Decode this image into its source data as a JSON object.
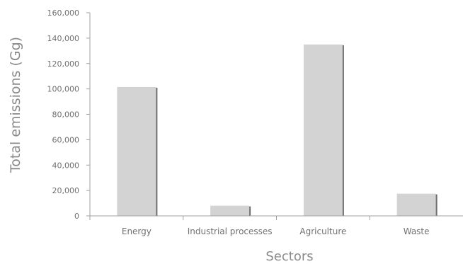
{
  "chart_data": {
    "type": "bar",
    "title": "",
    "xlabel": "Sectors",
    "ylabel": "Total emissions (Gg)",
    "categories": [
      "Energy",
      "Industrial processes",
      "Agriculture",
      "Waste"
    ],
    "values": [
      101500,
      8000,
      135000,
      17500
    ],
    "ylim": [
      0,
      160000
    ],
    "yticks": [
      0,
      20000,
      40000,
      60000,
      80000,
      100000,
      120000,
      140000,
      160000
    ],
    "ytick_labels": [
      "0",
      "20,000",
      "40,000",
      "60,000",
      "80,000",
      "100,000",
      "120,000",
      "140,000",
      "160,000"
    ],
    "grid": false,
    "legend": "none",
    "colors": {
      "bar_fill": "#d3d3d3",
      "bar_shadow": "#6e6e6e",
      "axis": "#a0a0a0",
      "text": "#707070"
    }
  }
}
